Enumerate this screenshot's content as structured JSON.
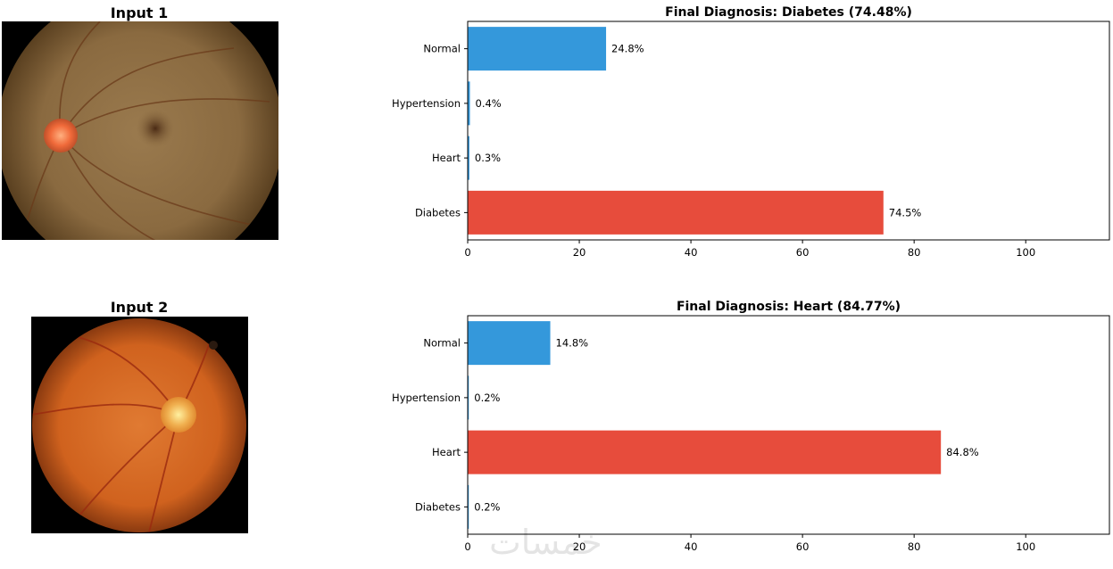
{
  "inputs": [
    {
      "title": "Input 1"
    },
    {
      "title": "Input 2"
    }
  ],
  "colors": {
    "predicted": "#e74c3c",
    "other": "#3498db"
  },
  "watermark": "خمسات",
  "chart_data": [
    {
      "type": "bar",
      "orientation": "horizontal",
      "title": "Final Diagnosis: Diabetes (74.48%)",
      "categories": [
        "Diabetes",
        "Heart",
        "Hypertension",
        "Normal"
      ],
      "values": [
        74.5,
        0.3,
        0.4,
        24.8
      ],
      "data_labels": [
        "74.5%",
        "0.3%",
        "0.4%",
        "24.8%"
      ],
      "predicted": "Diabetes",
      "xlim": [
        0,
        115
      ],
      "xticks": [
        0,
        20,
        40,
        60,
        80,
        100
      ],
      "grid": false
    },
    {
      "type": "bar",
      "orientation": "horizontal",
      "title": "Final Diagnosis: Heart (84.77%)",
      "categories": [
        "Diabetes",
        "Heart",
        "Hypertension",
        "Normal"
      ],
      "values": [
        0.2,
        84.8,
        0.2,
        14.8
      ],
      "data_labels": [
        "0.2%",
        "84.8%",
        "0.2%",
        "14.8%"
      ],
      "predicted": "Heart",
      "xlim": [
        0,
        115
      ],
      "xticks": [
        0,
        20,
        40,
        60,
        80,
        100
      ],
      "grid": false
    }
  ]
}
